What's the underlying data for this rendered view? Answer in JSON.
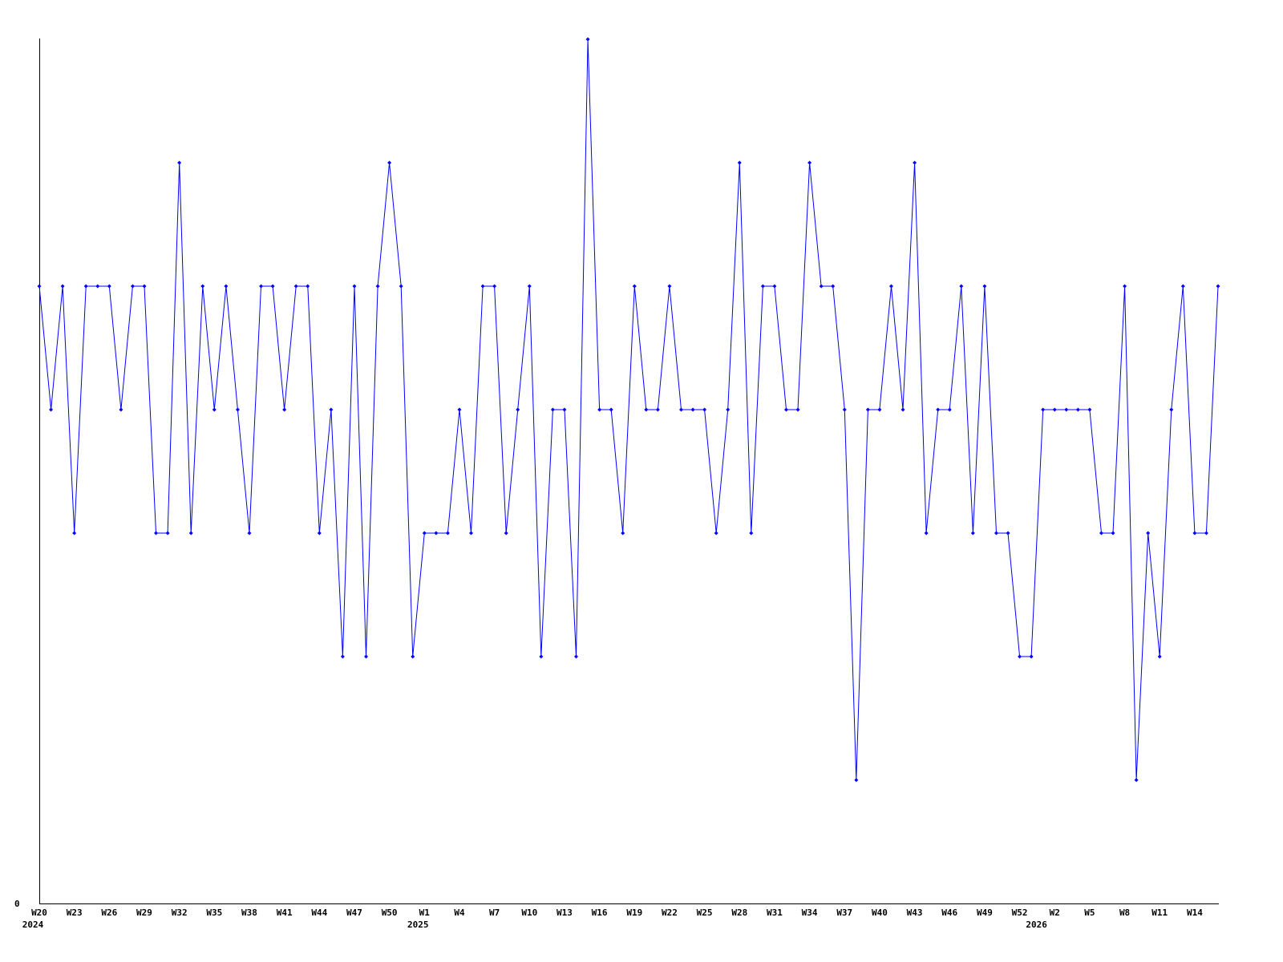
{
  "chart_data": {
    "type": "line",
    "title": "",
    "xlabel": "",
    "ylabel": "",
    "ylim": [
      0,
      7
    ],
    "y_tick_labels": [
      "0"
    ],
    "grid": false,
    "legend": "none",
    "line_color": "#0000ff",
    "axis_color": "#000000",
    "x": [
      "2024-W20",
      "2024-W21",
      "2024-W22",
      "2024-W23",
      "2024-W24",
      "2024-W25",
      "2024-W26",
      "2024-W27",
      "2024-W28",
      "2024-W29",
      "2024-W30",
      "2024-W31",
      "2024-W32",
      "2024-W33",
      "2024-W34",
      "2024-W35",
      "2024-W36",
      "2024-W37",
      "2024-W38",
      "2024-W39",
      "2024-W40",
      "2024-W41",
      "2024-W42",
      "2024-W43",
      "2024-W44",
      "2024-W45",
      "2024-W46",
      "2024-W47",
      "2024-W48",
      "2024-W49",
      "2024-W50",
      "2024-W51",
      "2024-W52",
      "2025-W1",
      "2025-W2",
      "2025-W3",
      "2025-W4",
      "2025-W5",
      "2025-W6",
      "2025-W7",
      "2025-W8",
      "2025-W9",
      "2025-W10",
      "2025-W11",
      "2025-W12",
      "2025-W13",
      "2025-W14",
      "2025-W15",
      "2025-W16",
      "2025-W17",
      "2025-W18",
      "2025-W19",
      "2025-W20",
      "2025-W21",
      "2025-W22",
      "2025-W23",
      "2025-W24",
      "2025-W25",
      "2025-W26",
      "2025-W27",
      "2025-W28",
      "2025-W29",
      "2025-W30",
      "2025-W31",
      "2025-W32",
      "2025-W33",
      "2025-W34",
      "2025-W35",
      "2025-W36",
      "2025-W37",
      "2025-W38",
      "2025-W39",
      "2025-W40",
      "2025-W41",
      "2025-W42",
      "2025-W43",
      "2025-W44",
      "2025-W45",
      "2025-W46",
      "2025-W47",
      "2025-W48",
      "2025-W49",
      "2025-W50",
      "2025-W51",
      "2025-W52",
      "2025-W53",
      "2026-W1",
      "2026-W2",
      "2026-W3",
      "2026-W4",
      "2026-W5",
      "2026-W6",
      "2026-W7",
      "2026-W8",
      "2026-W9",
      "2026-W10",
      "2026-W11",
      "2026-W12",
      "2026-W13",
      "2026-W14",
      "2026-W15",
      "2026-W16"
    ],
    "values": [
      5,
      4,
      5,
      3,
      5,
      5,
      5,
      4,
      5,
      5,
      3,
      3,
      6,
      3,
      5,
      4,
      5,
      4,
      3,
      5,
      5,
      4,
      5,
      5,
      3,
      4,
      2,
      5,
      2,
      5,
      6,
      5,
      2,
      3,
      3,
      3,
      4,
      3,
      5,
      5,
      3,
      4,
      5,
      2,
      4,
      4,
      2,
      7,
      4,
      4,
      3,
      5,
      4,
      4,
      5,
      4,
      4,
      4,
      3,
      4,
      6,
      3,
      5,
      5,
      4,
      4,
      6,
      5,
      5,
      4,
      1,
      4,
      4,
      5,
      4,
      6,
      3,
      4,
      4,
      5,
      3,
      5,
      3,
      3,
      2,
      2,
      4,
      4,
      4,
      4,
      4,
      3,
      3,
      5,
      1,
      3,
      2,
      4,
      5,
      3,
      3,
      5
    ],
    "x_ticks": [
      {
        "at": "2024-W20",
        "label": "W20"
      },
      {
        "at": "2024-W23",
        "label": "W23"
      },
      {
        "at": "2024-W26",
        "label": "W26"
      },
      {
        "at": "2024-W29",
        "label": "W29"
      },
      {
        "at": "2024-W32",
        "label": "W32"
      },
      {
        "at": "2024-W35",
        "label": "W35"
      },
      {
        "at": "2024-W38",
        "label": "W38"
      },
      {
        "at": "2024-W41",
        "label": "W41"
      },
      {
        "at": "2024-W44",
        "label": "W44"
      },
      {
        "at": "2024-W47",
        "label": "W47"
      },
      {
        "at": "2024-W50",
        "label": "W50"
      },
      {
        "at": "2025-W1",
        "label": "W1"
      },
      {
        "at": "2025-W4",
        "label": "W4"
      },
      {
        "at": "2025-W7",
        "label": "W7"
      },
      {
        "at": "2025-W10",
        "label": "W10"
      },
      {
        "at": "2025-W13",
        "label": "W13"
      },
      {
        "at": "2025-W16",
        "label": "W16"
      },
      {
        "at": "2025-W19",
        "label": "W19"
      },
      {
        "at": "2025-W22",
        "label": "W22"
      },
      {
        "at": "2025-W25",
        "label": "W25"
      },
      {
        "at": "2025-W28",
        "label": "W28"
      },
      {
        "at": "2025-W31",
        "label": "W31"
      },
      {
        "at": "2025-W34",
        "label": "W34"
      },
      {
        "at": "2025-W37",
        "label": "W37"
      },
      {
        "at": "2025-W40",
        "label": "W40"
      },
      {
        "at": "2025-W43",
        "label": "W43"
      },
      {
        "at": "2025-W46",
        "label": "W46"
      },
      {
        "at": "2025-W49",
        "label": "W49"
      },
      {
        "at": "2025-W52",
        "label": "W52"
      },
      {
        "at": "2026-W2",
        "label": "W2"
      },
      {
        "at": "2026-W5",
        "label": "W5"
      },
      {
        "at": "2026-W8",
        "label": "W8"
      },
      {
        "at": "2026-W11",
        "label": "W11"
      },
      {
        "at": "2026-W14",
        "label": "W14"
      }
    ],
    "year_labels": [
      {
        "at": "2024-W20",
        "label": "2024"
      },
      {
        "at": "2025-W1",
        "label": "2025"
      },
      {
        "at": "2026-W1",
        "label": "2026"
      }
    ]
  }
}
